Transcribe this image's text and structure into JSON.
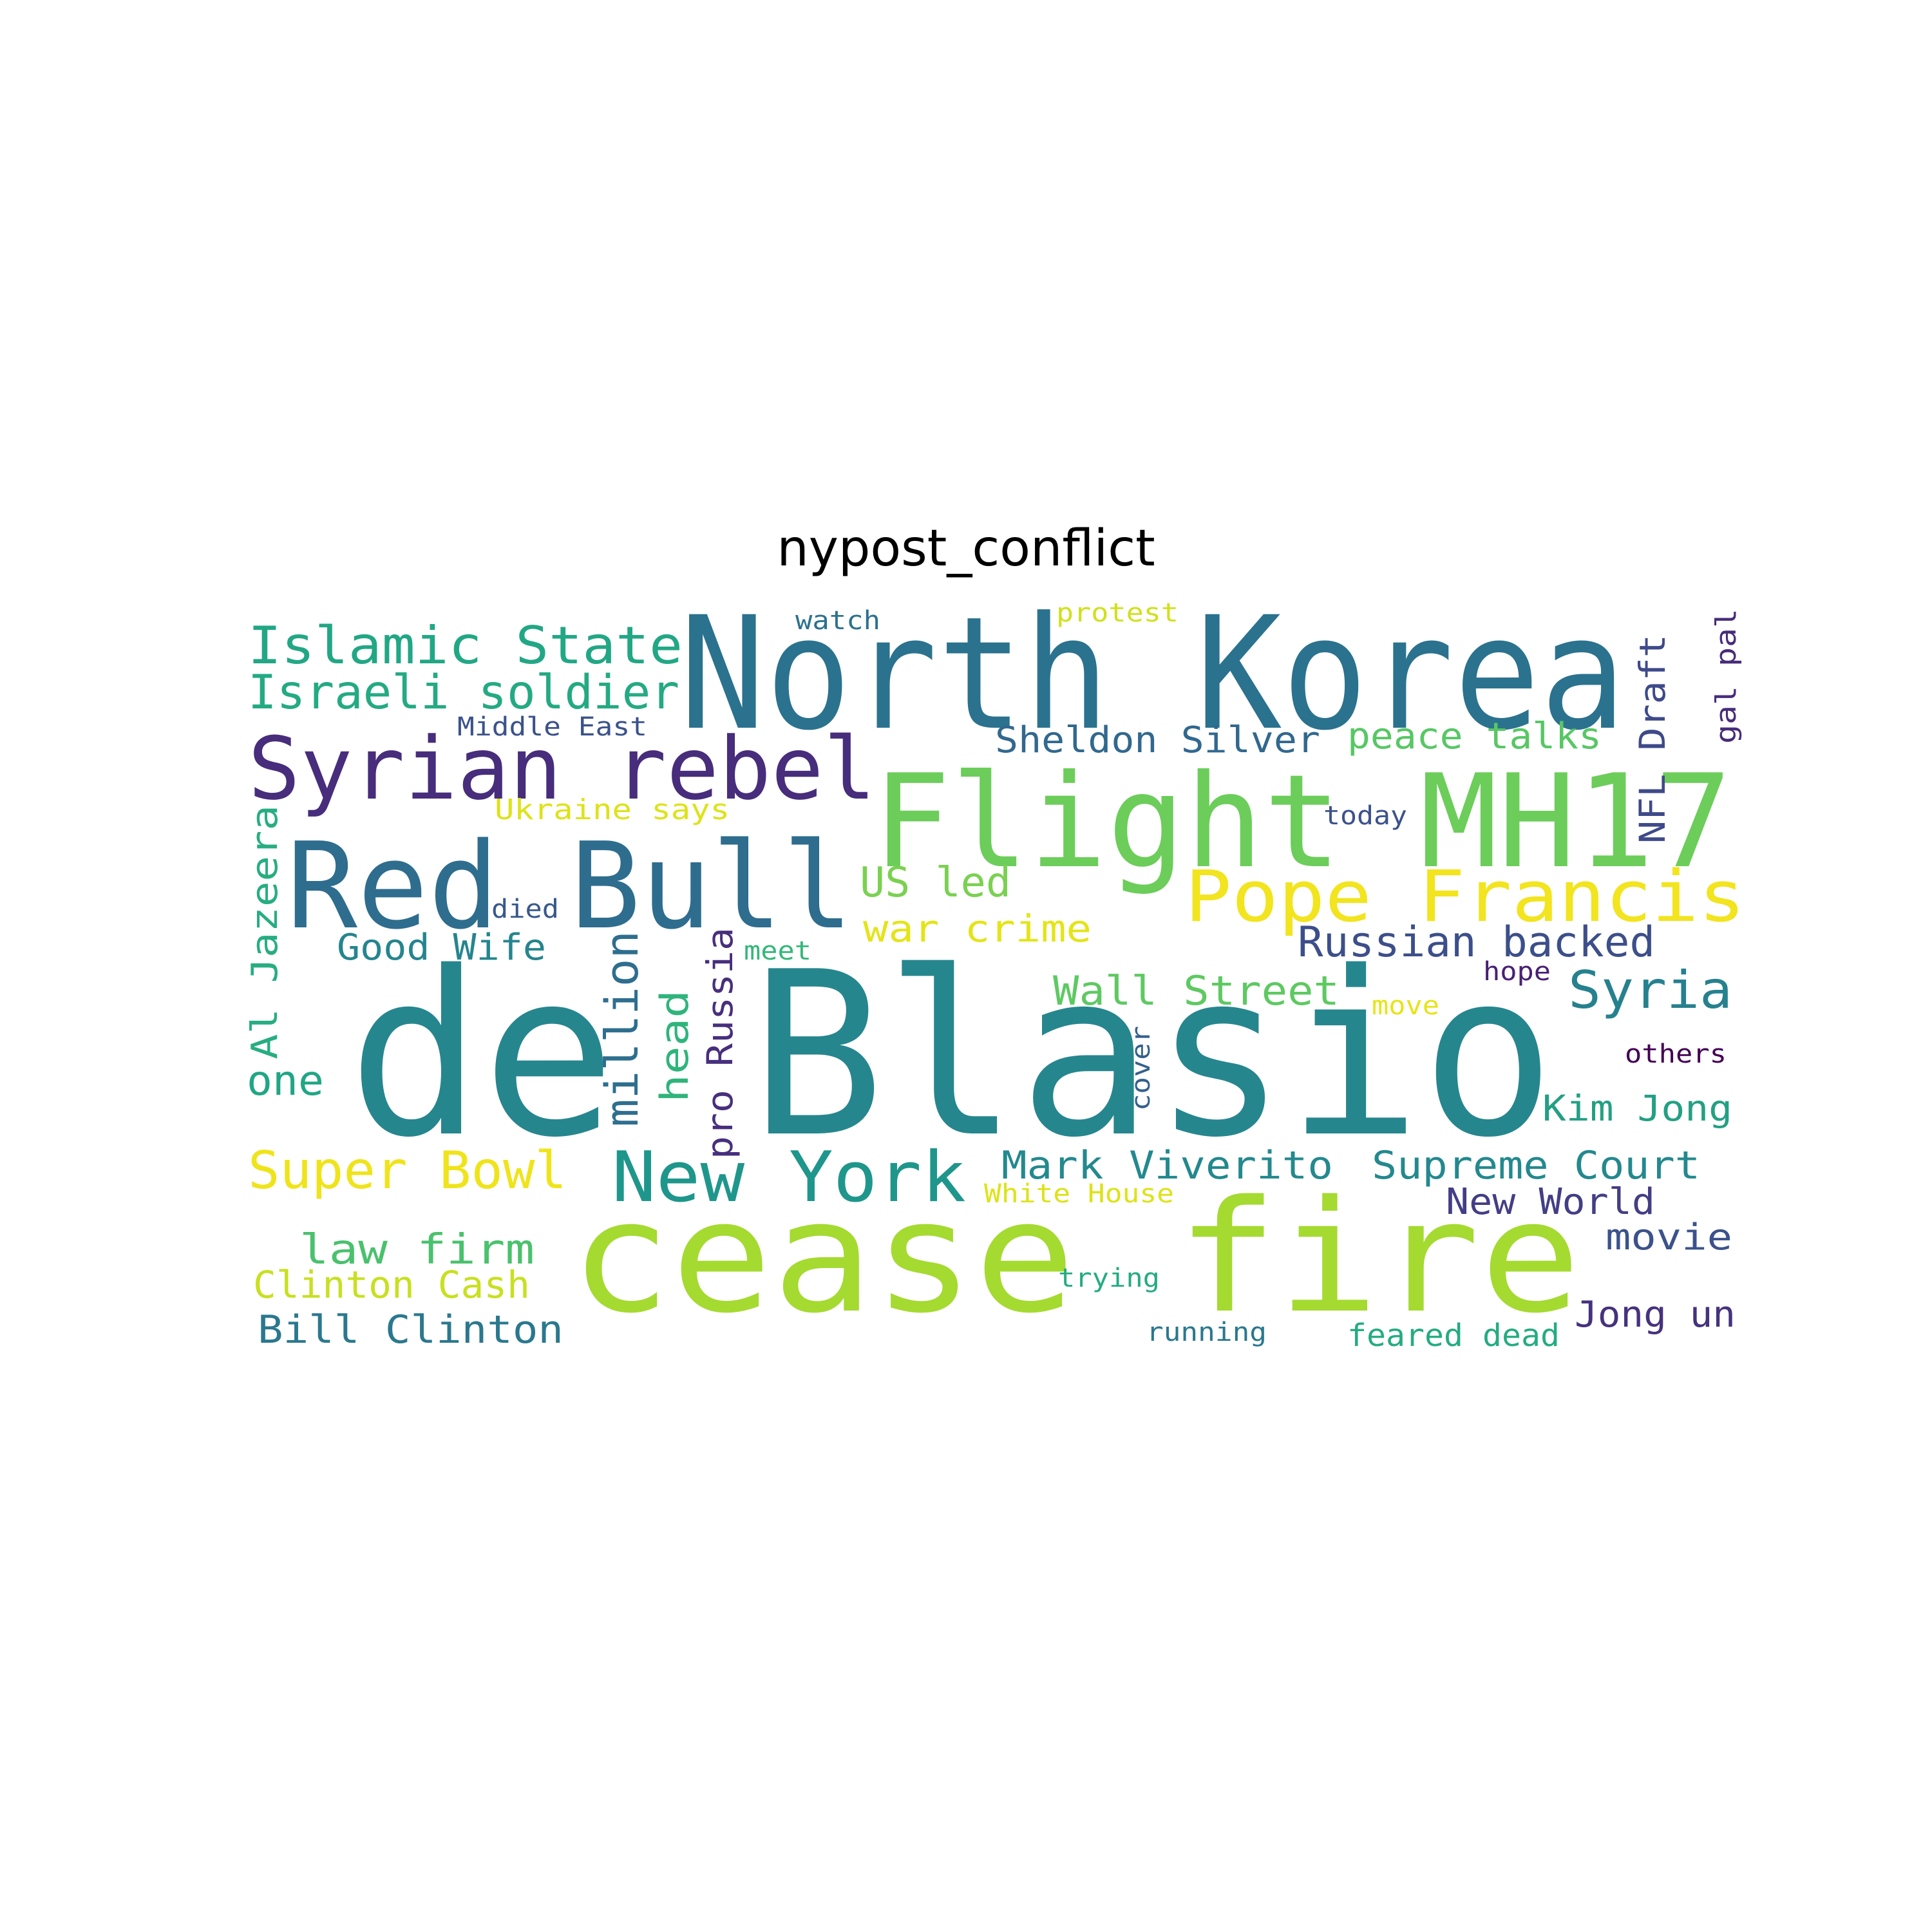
{
  "title": "nypost_conflict",
  "words": [
    {
      "text": "de Blasio",
      "color": "#26868e"
    },
    {
      "text": "North Korea",
      "color": "#2b728e"
    },
    {
      "text": "cease fire",
      "color": "#a5da31"
    },
    {
      "text": "Flight MH17",
      "color": "#6ccd5a"
    },
    {
      "text": "Red Bull",
      "color": "#2e6d8e"
    },
    {
      "text": "Syrian rebel",
      "color": "#472d7b"
    },
    {
      "text": "Pope Francis",
      "color": "#f2e41e"
    },
    {
      "text": "New York",
      "color": "#1f968b"
    },
    {
      "text": "Islamic State",
      "color": "#22a785"
    },
    {
      "text": "Israeli soldier",
      "color": "#24aa83"
    },
    {
      "text": "Super Bowl",
      "color": "#efe41c"
    },
    {
      "text": "Syria",
      "color": "#26818e"
    },
    {
      "text": "Russian backed",
      "color": "#3c4f8a"
    },
    {
      "text": "Wall Street",
      "color": "#5ec962"
    },
    {
      "text": "Mark Viverito",
      "color": "#23898e"
    },
    {
      "text": "Supreme Court",
      "color": "#23898e"
    },
    {
      "text": "law firm",
      "color": "#4ac16d"
    },
    {
      "text": "Clinton Cash",
      "color": "#c8e020"
    },
    {
      "text": "Bill Clinton",
      "color": "#2a788e"
    },
    {
      "text": "Good Wife",
      "color": "#25858e"
    },
    {
      "text": "Sheldon Silver",
      "color": "#31688e"
    },
    {
      "text": "peace talks",
      "color": "#58c765"
    },
    {
      "text": "US led",
      "color": "#7ad151"
    },
    {
      "text": "war crime",
      "color": "#e4e419"
    },
    {
      "text": "Kim Jong",
      "color": "#23a083"
    },
    {
      "text": "New World",
      "color": "#433e85"
    },
    {
      "text": "movie",
      "color": "#3b528b"
    },
    {
      "text": "Jong un",
      "color": "#46327e"
    },
    {
      "text": "feared dead",
      "color": "#25ab82"
    },
    {
      "text": "one",
      "color": "#21a685"
    },
    {
      "text": "Ukraine says",
      "color": "#dde318"
    },
    {
      "text": "Middle East",
      "color": "#3b528b"
    },
    {
      "text": "watch",
      "color": "#2c728e"
    },
    {
      "text": "protest",
      "color": "#d0e11c"
    },
    {
      "text": "today",
      "color": "#3b528b"
    },
    {
      "text": "died",
      "color": "#38598c"
    },
    {
      "text": "meet",
      "color": "#35b779"
    },
    {
      "text": "move",
      "color": "#e7e419"
    },
    {
      "text": "hope",
      "color": "#482173"
    },
    {
      "text": "others",
      "color": "#440154"
    },
    {
      "text": "White House",
      "color": "#dde318"
    },
    {
      "text": "trying",
      "color": "#25ab82"
    },
    {
      "text": "running",
      "color": "#2a788e"
    },
    {
      "text": "Al Jazeera",
      "color": "#27ad81"
    },
    {
      "text": "million",
      "color": "#2e6e8e"
    },
    {
      "text": "head",
      "color": "#2fb47c"
    },
    {
      "text": "pro Russia",
      "color": "#472f7d"
    },
    {
      "text": "cover",
      "color": "#34608d"
    },
    {
      "text": "NFL Draft",
      "color": "#3e4a89"
    },
    {
      "text": "gal pal",
      "color": "#472c7a"
    }
  ]
}
